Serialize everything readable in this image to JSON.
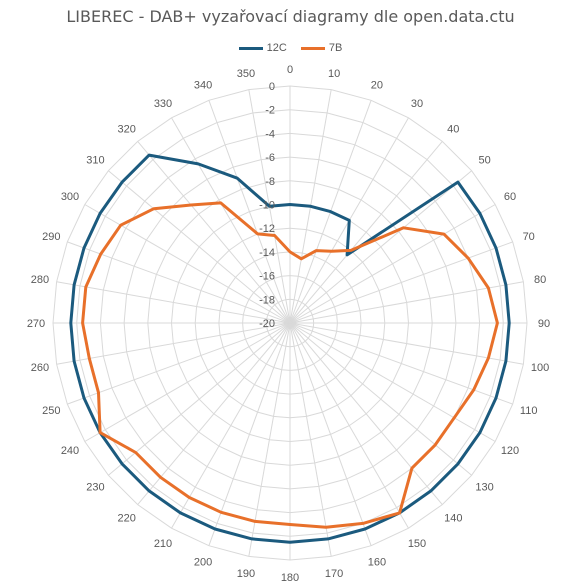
{
  "chart_data": {
    "type": "radar",
    "title": "LIBEREC - DAB+ vyzařovací diagramy dle open.data.ctu",
    "legend_position": "top",
    "categories": [
      "0",
      "10",
      "20",
      "30",
      "40",
      "50",
      "60",
      "70",
      "80",
      "90",
      "100",
      "110",
      "120",
      "130",
      "140",
      "150",
      "160",
      "170",
      "180",
      "190",
      "200",
      "210",
      "220",
      "230",
      "240",
      "250",
      "260",
      "270",
      "280",
      "290",
      "300",
      "310",
      "320",
      "330",
      "340",
      "350"
    ],
    "radial_range": [
      -20,
      0
    ],
    "radial_ticks": [
      "0",
      "-2",
      "-4",
      "-6",
      "-8",
      "-10",
      "-12",
      "-14",
      "-16",
      "-18",
      "-20"
    ],
    "series": [
      {
        "name": "12C",
        "color": "#1b5a7e",
        "values": [
          -10,
          -10,
          -10,
          -10,
          -12.5,
          -1.5,
          -1.5,
          -1.5,
          -1.5,
          -1.5,
          -1.5,
          -1.5,
          -1.5,
          -1.5,
          -1.5,
          -1.5,
          -1.5,
          -1.5,
          -1.5,
          -1.5,
          -1.5,
          -1.5,
          -1.5,
          -1.5,
          -1.5,
          -1.5,
          -1.5,
          -1.5,
          -1.5,
          -1.5,
          -1.5,
          -1.5,
          -1.5,
          -4.5,
          -7,
          -10
        ]
      },
      {
        "name": "7B",
        "color": "#e8702a",
        "values": [
          -14,
          -14.5,
          -13.5,
          -13,
          -12,
          -7.5,
          -5,
          -4,
          -3,
          -2.5,
          -3,
          -3.5,
          -4,
          -4,
          -4,
          -1.5,
          -2,
          -2.5,
          -3,
          -3,
          -3,
          -3,
          -3,
          -3,
          -1.5,
          -2.8,
          -2.8,
          -2.5,
          -2.5,
          -3,
          -3.5,
          -5,
          -7,
          -8.3,
          -12,
          -12.5
        ]
      }
    ]
  }
}
